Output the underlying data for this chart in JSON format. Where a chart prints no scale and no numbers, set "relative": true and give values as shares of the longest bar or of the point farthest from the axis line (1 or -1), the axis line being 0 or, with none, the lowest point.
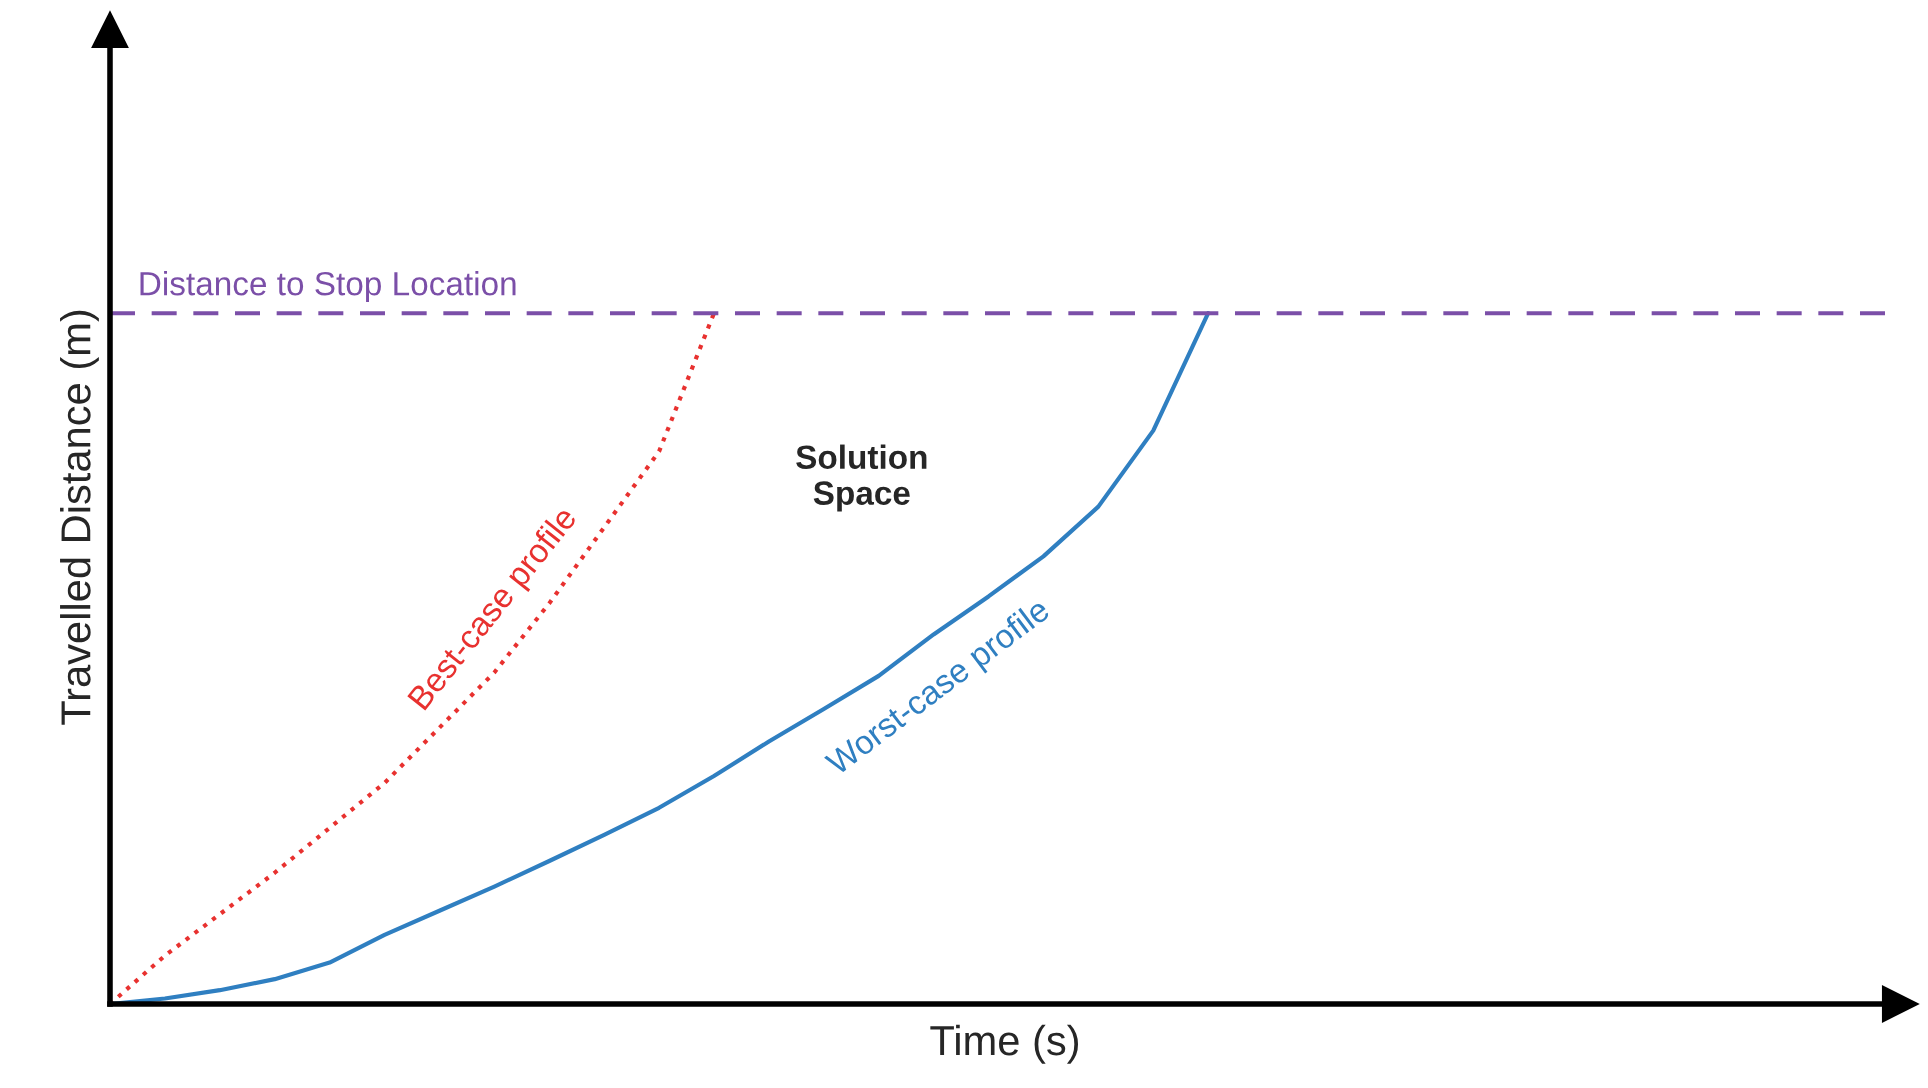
{
  "chart_data": {
    "type": "line",
    "relative": true,
    "xlabel": "Time (s)",
    "ylabel": "Travelled Distance (m)",
    "legend": false,
    "marker": "none",
    "categories": [
      null,
      null,
      null,
      null,
      null,
      null,
      null,
      null,
      null,
      null,
      null,
      null,
      null,
      null,
      null,
      null,
      null,
      null,
      null,
      null,
      null
    ],
    "series": [
      {
        "name": "Best-case profile",
        "color": "#e8312f",
        "line_style": "dotted",
        "values": [
          0,
          0.07,
          0.13,
          0.19,
          0.255,
          0.32,
          0.4,
          0.48,
          0.58,
          0.69,
          0.8,
          1.0,
          null,
          null,
          null,
          null,
          null,
          null,
          null,
          null,
          null
        ]
      },
      {
        "name": "Worst-case profile",
        "color": "#2f7fc1",
        "line_style": "solid",
        "values": [
          0,
          0.008,
          0.02,
          0.036,
          0.06,
          0.1,
          0.135,
          0.17,
          0.207,
          0.245,
          0.284,
          0.33,
          0.38,
          0.427,
          0.475,
          0.535,
          0.59,
          0.648,
          0.72,
          0.83,
          1.0
        ]
      }
    ],
    "ref_lines": [
      {
        "axis": "y",
        "value": 1.0,
        "label": "Distance to Stop Location",
        "color": "#7b4fa8",
        "line_style": "dashed"
      }
    ],
    "annotations": [
      "Solution\nSpace"
    ]
  }
}
